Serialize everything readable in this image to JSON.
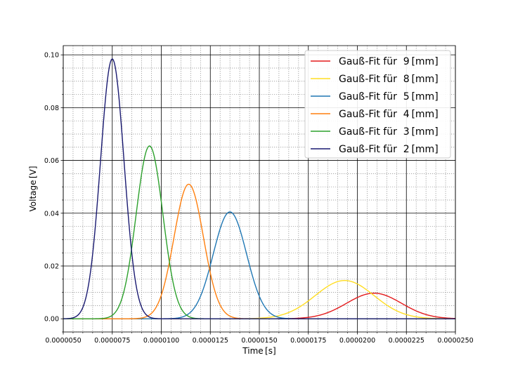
{
  "chart_data": {
    "type": "line",
    "title": "",
    "xlabel": "Time [s]",
    "ylabel": "Voltage [V]",
    "xlim": [
      5e-06,
      2.5e-05
    ],
    "ylim": [
      -0.005,
      0.1035
    ],
    "grid": "major and minor",
    "legend_position": "top-right",
    "x_ticks": [
      5e-06,
      7.5e-06,
      1e-05,
      1.25e-05,
      1.5e-05,
      1.75e-05,
      2e-05,
      2.25e-05,
      2.5e-05
    ],
    "x_tick_labels": [
      "0.0000050",
      "0.0000075",
      "0.0000100",
      "0.0000125",
      "0.0000150",
      "0.0000175",
      "0.0000200",
      "0.0000225",
      "0.0000250"
    ],
    "y_ticks": [
      0.0,
      0.02,
      0.04,
      0.06,
      0.08,
      0.1
    ],
    "y_tick_labels": [
      "0.00",
      "0.02",
      "0.04",
      "0.06",
      "0.08",
      "0.10"
    ],
    "series": [
      {
        "name": "Gauß-Fit für  9 [mm]",
        "color": "#e31a1c",
        "amplitude": 0.0097,
        "center": 2.085e-05,
        "sigma": 1.4e-06
      },
      {
        "name": "Gauß-Fit für  8 [mm]",
        "color": "#ffdd22",
        "amplitude": 0.0145,
        "center": 1.935e-05,
        "sigma": 1.5e-06
      },
      {
        "name": "Gauß-Fit für  5 [mm]",
        "color": "#1f77b4",
        "amplitude": 0.0405,
        "center": 1.35e-05,
        "sigma": 8.5e-07
      },
      {
        "name": "Gauß-Fit für  4 [mm]",
        "color": "#ff7f0e",
        "amplitude": 0.051,
        "center": 1.14e-05,
        "sigma": 7.5e-07
      },
      {
        "name": "Gauß-Fit für  3 [mm]",
        "color": "#2ca02c",
        "amplitude": 0.0655,
        "center": 9.4e-06,
        "sigma": 6.8e-07
      },
      {
        "name": "Gauß-Fit für  2 [mm]",
        "color": "#191970",
        "amplitude": 0.0985,
        "center": 7.5e-06,
        "sigma": 6e-07
      }
    ]
  }
}
